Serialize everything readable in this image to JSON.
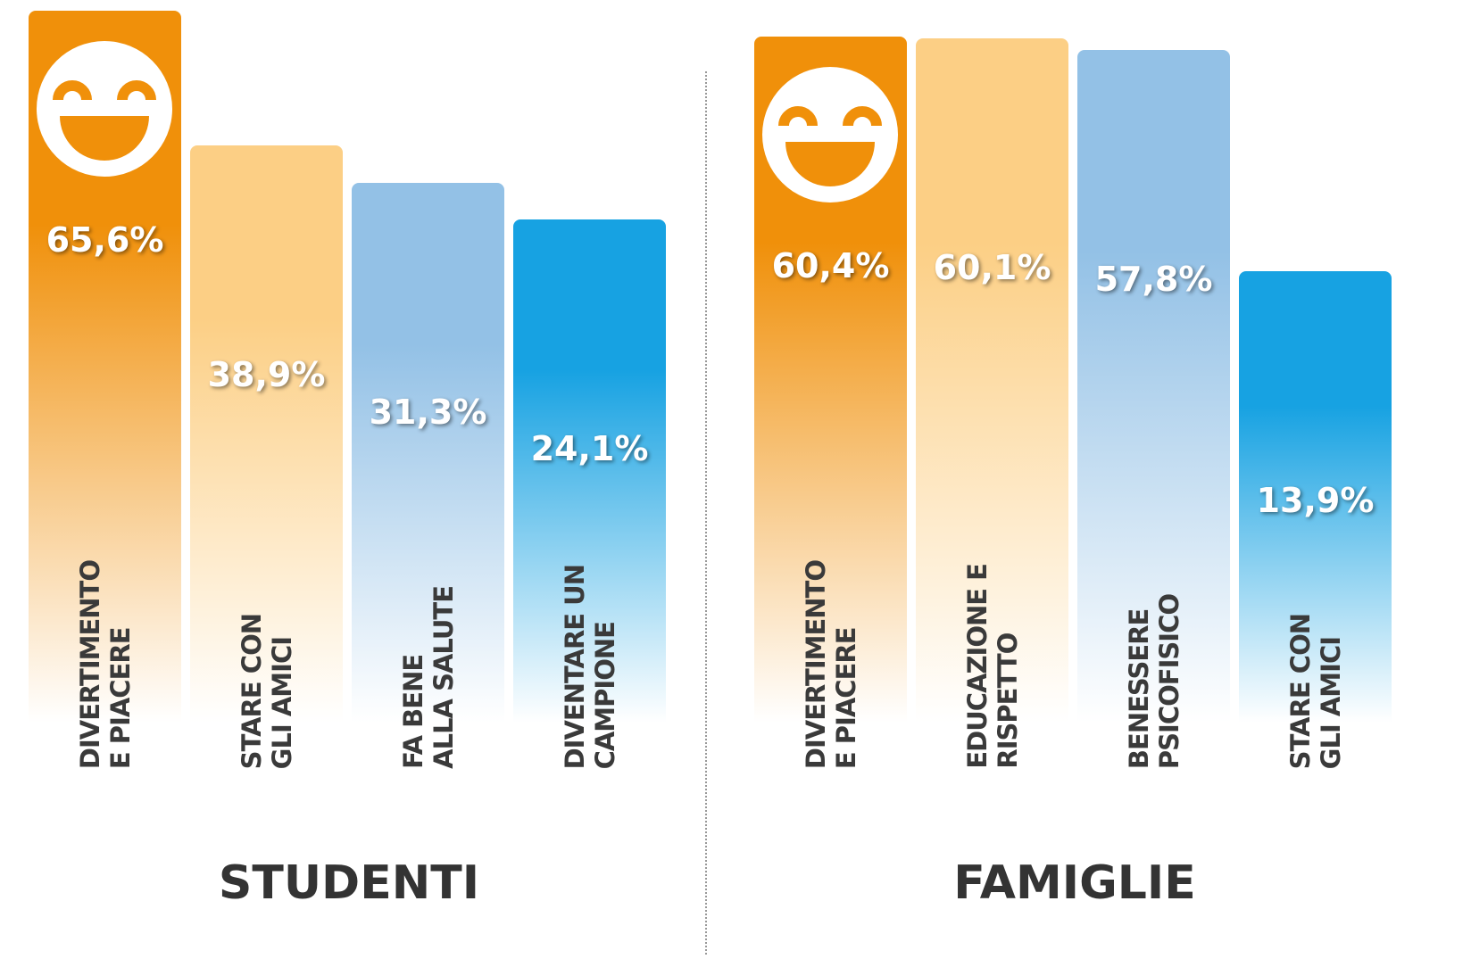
{
  "chart_data": [
    {
      "type": "bar",
      "title": "STUDENTI",
      "categories": [
        "DIVERTIMENTO\nE PIACERE",
        "STARE CON\nGLI AMICI",
        "FA BENE\nALLA SALUTE",
        "DIVENTARE UN\nCAMPIONE"
      ],
      "values": [
        65.6,
        38.9,
        31.3,
        24.1
      ],
      "value_labels": [
        "65,6%",
        "38,9%",
        "31,3%",
        "24,1%"
      ],
      "colors": [
        "#f0900a",
        "#fccf85",
        "#93c1e6",
        "#17a2e2"
      ]
    },
    {
      "type": "bar",
      "title": "FAMIGLIE",
      "categories": [
        "DIVERTIMENTO\nE PIACERE",
        "EDUCAZIONE E\nRISPETTO",
        "BENESSERE\nPSICOFISICO",
        "STARE CON\nGLI AMICI"
      ],
      "values": [
        60.4,
        60.1,
        57.8,
        13.9
      ],
      "value_labels": [
        "60,4%",
        "60,1%",
        "57,8%",
        "13,9%"
      ],
      "colors": [
        "#f0900a",
        "#fccf85",
        "#93c1e6",
        "#17a2e2"
      ]
    }
  ]
}
